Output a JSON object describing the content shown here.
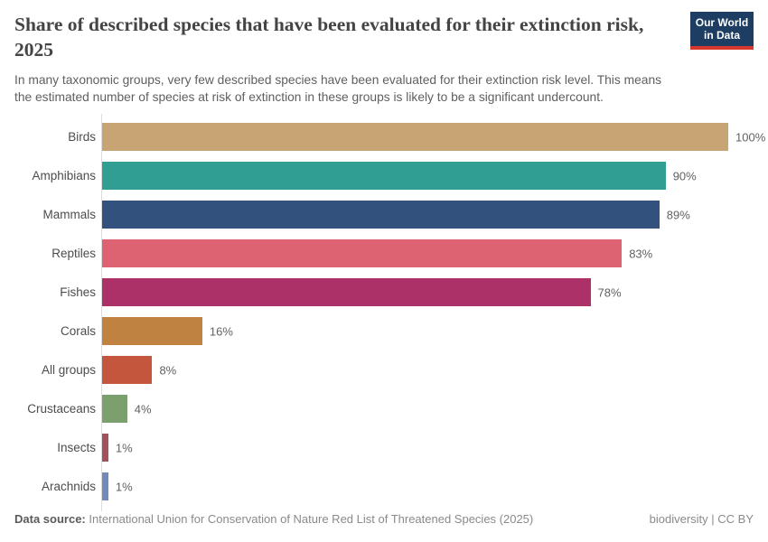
{
  "header": {
    "title": "Share of described species that have been evaluated for their extinction risk, 2025",
    "subtitle": "In many taxonomic groups, very few described species have been evaluated for their extinction risk level. This means the estimated number of species at risk of extinction in these groups is likely to be a significant undercount.",
    "logo": {
      "line1": "Our World",
      "line2": "in Data",
      "bg_color": "#1d3d63",
      "accent_color": "#d7372e"
    }
  },
  "chart_data": {
    "type": "bar",
    "orientation": "horizontal",
    "title": "Share of described species that have been evaluated for their extinction risk, 2025",
    "categories": [
      "Birds",
      "Amphibians",
      "Mammals",
      "Reptiles",
      "Fishes",
      "Corals",
      "All groups",
      "Crustaceans",
      "Insects",
      "Arachnids"
    ],
    "values": [
      100,
      90,
      89,
      83,
      78,
      16,
      8,
      4,
      1,
      1
    ],
    "value_labels": [
      "100%",
      "90%",
      "89%",
      "83%",
      "78%",
      "16%",
      "8%",
      "4%",
      "1%",
      "1%"
    ],
    "colors": [
      "#c8a373",
      "#309e93",
      "#33517d",
      "#de6372",
      "#ab3168",
      "#c08240",
      "#c3563c",
      "#7ba06d",
      "#a3525c",
      "#7389b8"
    ],
    "xlabel": "",
    "ylabel": "",
    "xlim": [
      0,
      100
    ],
    "grid": false,
    "legend": "none"
  },
  "footer": {
    "source_label": "Data source:",
    "source_text": " International Union for Conservation of Nature Red List of Threatened Species (2025)",
    "credit": "biodiversity | CC BY"
  }
}
